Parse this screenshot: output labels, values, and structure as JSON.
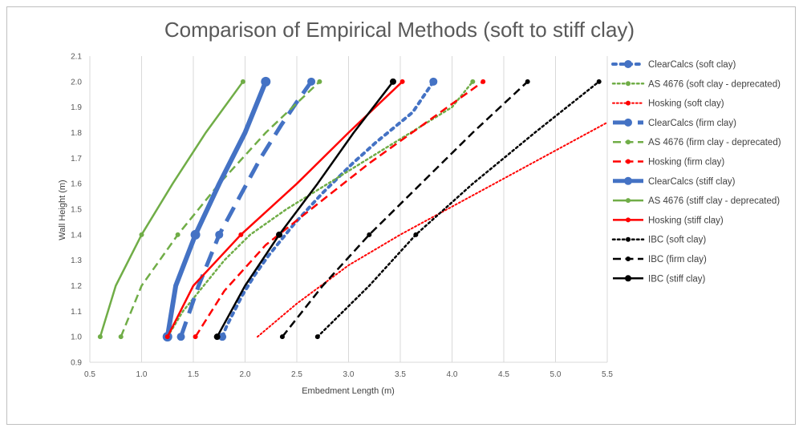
{
  "chart_data": {
    "type": "line",
    "title": "Comparison of Empirical Methods (soft to stiff clay)",
    "xlabel": "Embedment Length (m)",
    "ylabel": "Wall Height (m)",
    "xlim": [
      0.5,
      5.5
    ],
    "ylim": [
      0.9,
      2.1
    ],
    "xticks": [
      "0.5",
      "1.0",
      "1.5",
      "2.0",
      "2.5",
      "3.0",
      "3.5",
      "4.0",
      "4.5",
      "5.0",
      "5.5"
    ],
    "yticks": [
      "0.9",
      "1.0",
      "1.1",
      "1.2",
      "1.3",
      "1.4",
      "1.5",
      "1.6",
      "1.7",
      "1.8",
      "1.9",
      "2.0",
      "2.1"
    ],
    "grid": "vertical",
    "legend_position": "right",
    "series": [
      {
        "name": "ClearCalcs (soft clay)",
        "color": "#4472c4",
        "style": "dot",
        "width": 4,
        "marker": 5,
        "x": [
          1.78,
          1.82,
          1.87,
          1.92,
          1.97,
          2.03,
          2.09,
          2.16,
          2.23,
          2.31,
          2.39,
          2.47,
          2.56,
          2.65,
          2.74,
          2.84,
          2.94,
          3.04,
          3.15,
          3.26,
          3.38,
          3.5,
          3.62,
          3.72,
          3.82
        ],
        "y": [
          1.0,
          1.04,
          1.08,
          1.12,
          1.16,
          1.2,
          1.24,
          1.28,
          1.32,
          1.36,
          1.4,
          1.44,
          1.48,
          1.52,
          1.56,
          1.6,
          1.64,
          1.68,
          1.72,
          1.76,
          1.8,
          1.84,
          1.88,
          1.94,
          2.0
        ],
        "marker_points": [
          [
            1.78,
            1.0
          ],
          [
            3.82,
            2.0
          ]
        ]
      },
      {
        "name": "AS 4676 (soft clay - deprecated)",
        "color": "#70ad47",
        "style": "dot",
        "width": 2.5,
        "marker": 3,
        "x": [
          1.25,
          1.4,
          1.6,
          1.8,
          2.05,
          2.4,
          2.8,
          3.2,
          3.6,
          4.0,
          4.2
        ],
        "y": [
          1.0,
          1.1,
          1.2,
          1.3,
          1.4,
          1.5,
          1.6,
          1.7,
          1.8,
          1.9,
          2.0
        ],
        "marker_points": [
          [
            4.2,
            2.0
          ]
        ]
      },
      {
        "name": "Hosking (soft clay)",
        "color": "#ff0000",
        "style": "dot",
        "width": 2,
        "marker": 3,
        "x": [
          2.12,
          2.5,
          3.0,
          3.5,
          4.0,
          4.5,
          5.0,
          5.5
        ],
        "y": [
          1.0,
          1.13,
          1.28,
          1.4,
          1.51,
          1.62,
          1.73,
          1.84
        ],
        "marker_points": []
      },
      {
        "name": "ClearCalcs (firm clay)",
        "color": "#4472c4",
        "style": "dash",
        "width": 5,
        "marker": 5,
        "x": [
          1.38,
          1.55,
          1.75,
          1.95,
          2.15,
          2.35,
          2.5,
          2.64
        ],
        "y": [
          1.0,
          1.2,
          1.4,
          1.55,
          1.7,
          1.83,
          1.92,
          2.0
        ],
        "marker_points": [
          [
            1.38,
            1.0
          ],
          [
            1.75,
            1.4
          ],
          [
            2.64,
            2.0
          ]
        ]
      },
      {
        "name": "AS 4676 (firm clay - deprecated)",
        "color": "#70ad47",
        "style": "dash",
        "width": 2.5,
        "marker": 3,
        "x": [
          0.8,
          1.0,
          1.35,
          1.75,
          2.2,
          2.72
        ],
        "y": [
          1.0,
          1.2,
          1.4,
          1.6,
          1.8,
          2.0
        ],
        "marker_points": [
          [
            0.8,
            1.0
          ],
          [
            1.35,
            1.4
          ],
          [
            2.72,
            2.0
          ]
        ]
      },
      {
        "name": "Hosking (firm clay)",
        "color": "#ff0000",
        "style": "dash",
        "width": 2.5,
        "marker": 3,
        "x": [
          1.52,
          1.8,
          2.2,
          2.7,
          3.2,
          3.75,
          4.3
        ],
        "y": [
          1.0,
          1.18,
          1.36,
          1.52,
          1.68,
          1.84,
          2.0
        ],
        "marker_points": [
          [
            1.52,
            1.0
          ],
          [
            4.3,
            2.0
          ]
        ]
      },
      {
        "name": "ClearCalcs (stiff clay)",
        "color": "#4472c4",
        "style": "solid",
        "width": 6,
        "marker": 6,
        "x": [
          1.25,
          1.33,
          1.52,
          1.75,
          2.0,
          2.2
        ],
        "y": [
          1.0,
          1.2,
          1.4,
          1.6,
          1.8,
          2.0
        ],
        "marker_points": [
          [
            1.25,
            1.0
          ],
          [
            1.52,
            1.4
          ],
          [
            2.2,
            2.0
          ]
        ]
      },
      {
        "name": "AS 4676 (stiff clay - deprecated)",
        "color": "#70ad47",
        "style": "solid",
        "width": 2.5,
        "marker": 3,
        "x": [
          0.6,
          0.75,
          1.0,
          1.3,
          1.62,
          1.98
        ],
        "y": [
          1.0,
          1.2,
          1.4,
          1.6,
          1.8,
          2.0
        ],
        "marker_points": [
          [
            0.6,
            1.0
          ],
          [
            1.0,
            1.4
          ],
          [
            1.98,
            2.0
          ]
        ]
      },
      {
        "name": "Hosking (stiff clay)",
        "color": "#ff0000",
        "style": "solid",
        "width": 2.5,
        "marker": 3,
        "x": [
          1.25,
          1.5,
          1.96,
          2.5,
          3.0,
          3.52
        ],
        "y": [
          1.0,
          1.2,
          1.4,
          1.6,
          1.8,
          2.0
        ],
        "marker_points": [
          [
            1.25,
            1.0
          ],
          [
            1.96,
            1.4
          ],
          [
            3.52,
            2.0
          ]
        ]
      },
      {
        "name": "IBC (soft clay)",
        "color": "#000000",
        "style": "dot",
        "width": 2.5,
        "marker": 3,
        "x": [
          2.7,
          3.2,
          3.65,
          4.2,
          4.8,
          5.42
        ],
        "y": [
          1.0,
          1.2,
          1.4,
          1.6,
          1.8,
          2.0
        ],
        "marker_points": [
          [
            2.7,
            1.0
          ],
          [
            3.65,
            1.4
          ],
          [
            5.42,
            2.0
          ]
        ]
      },
      {
        "name": "IBC (firm clay)",
        "color": "#000000",
        "style": "dash",
        "width": 2.5,
        "marker": 3,
        "x": [
          2.36,
          2.75,
          3.2,
          3.7,
          4.2,
          4.73
        ],
        "y": [
          1.0,
          1.2,
          1.4,
          1.6,
          1.8,
          2.0
        ],
        "marker_points": [
          [
            2.36,
            1.0
          ],
          [
            3.2,
            1.4
          ],
          [
            4.73,
            2.0
          ]
        ]
      },
      {
        "name": "IBC (stiff clay)",
        "color": "#000000",
        "style": "solid",
        "width": 2.5,
        "marker": 4,
        "x": [
          1.73,
          2.0,
          2.33,
          2.7,
          3.05,
          3.43
        ],
        "y": [
          1.0,
          1.2,
          1.4,
          1.6,
          1.8,
          2.0
        ],
        "marker_points": [
          [
            1.73,
            1.0
          ],
          [
            2.33,
            1.4
          ],
          [
            3.43,
            2.0
          ]
        ]
      }
    ]
  }
}
